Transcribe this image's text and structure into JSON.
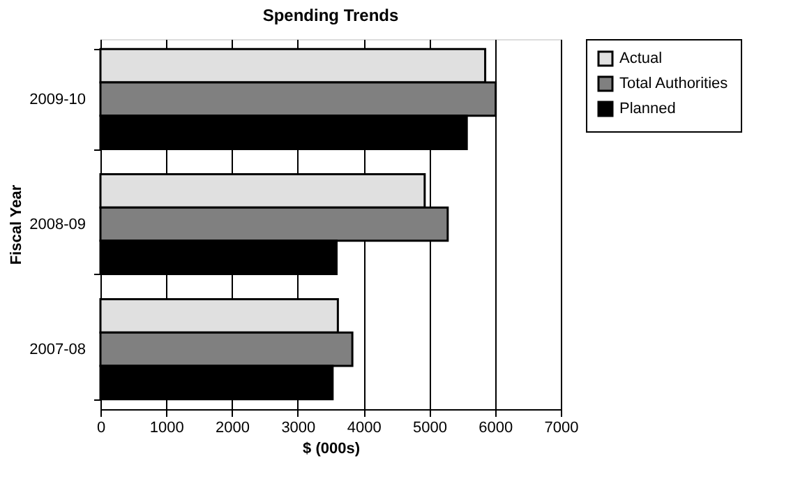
{
  "chart_data": {
    "type": "bar",
    "orientation": "horizontal",
    "title": "Spending Trends",
    "xlabel": "$ (000s)",
    "ylabel": "Fiscal Year",
    "categories": [
      "2009-10",
      "2008-09",
      "2007-08"
    ],
    "series": [
      {
        "name": "Actual",
        "color": "#e0e0e0",
        "values": [
          5850,
          4930,
          3610
        ]
      },
      {
        "name": "Total Authorities",
        "color": "#808080",
        "values": [
          6010,
          5280,
          3830
        ]
      },
      {
        "name": "Planned",
        "color": "#000000",
        "values": [
          5570,
          3590,
          3530
        ]
      }
    ],
    "xlim": [
      0,
      7000
    ],
    "xticks": [
      0,
      1000,
      2000,
      3000,
      4000,
      5000,
      6000,
      7000
    ],
    "grid": "x",
    "legend": "right"
  }
}
